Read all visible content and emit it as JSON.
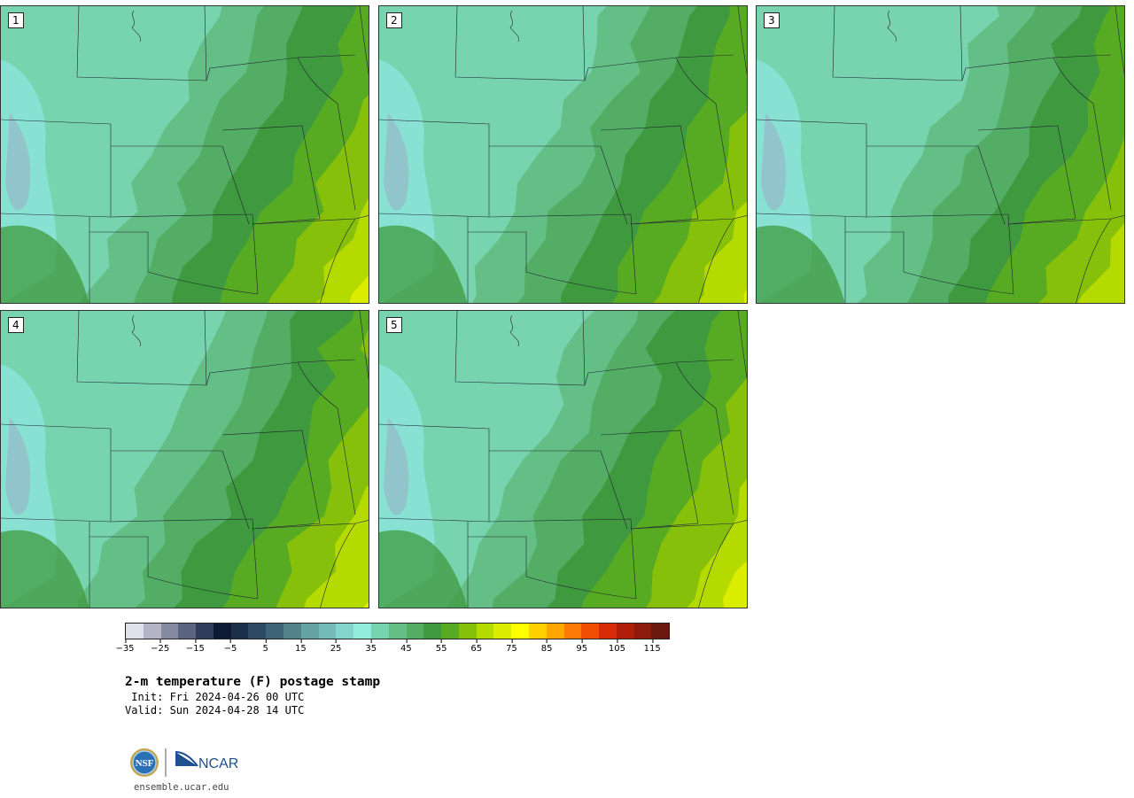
{
  "panels": [
    {
      "label": "1"
    },
    {
      "label": "2"
    },
    {
      "label": "3"
    },
    {
      "label": "4"
    },
    {
      "label": "5"
    }
  ],
  "colorbar": {
    "colors": [
      "#dfe1ea",
      "#b3b4c6",
      "#868ba1",
      "#5a6480",
      "#2f3c5a",
      "#0c1a33",
      "#1a2e4a",
      "#2c4b63",
      "#3d6577",
      "#52838b",
      "#66a3a3",
      "#74bbb8",
      "#84d6cd",
      "#94ecdd",
      "#77d4ae",
      "#64bf86",
      "#54ad64",
      "#3f9a3f",
      "#57ab22",
      "#86c00a",
      "#b5da00",
      "#dcee00",
      "#fefe00",
      "#fed000",
      "#fea500",
      "#fe7a06",
      "#f24d05",
      "#d72a06",
      "#b01d0a",
      "#8e1a0c",
      "#6b190e"
    ],
    "ticks": [
      "−35",
      "−25",
      "−15",
      "−5",
      "5",
      "15",
      "25",
      "35",
      "45",
      "55",
      "65",
      "75",
      "85",
      "95",
      "105",
      "115"
    ]
  },
  "title": "2-m temperature (F) postage stamp",
  "init": " Init: Fri 2024-04-26 00 UTC",
  "valid": "Valid: Sun 2024-04-28 14 UTC",
  "logos": {
    "nsf": "NSF",
    "ncar": "NCAR"
  },
  "footer": "ensemble.ucar.edu"
}
